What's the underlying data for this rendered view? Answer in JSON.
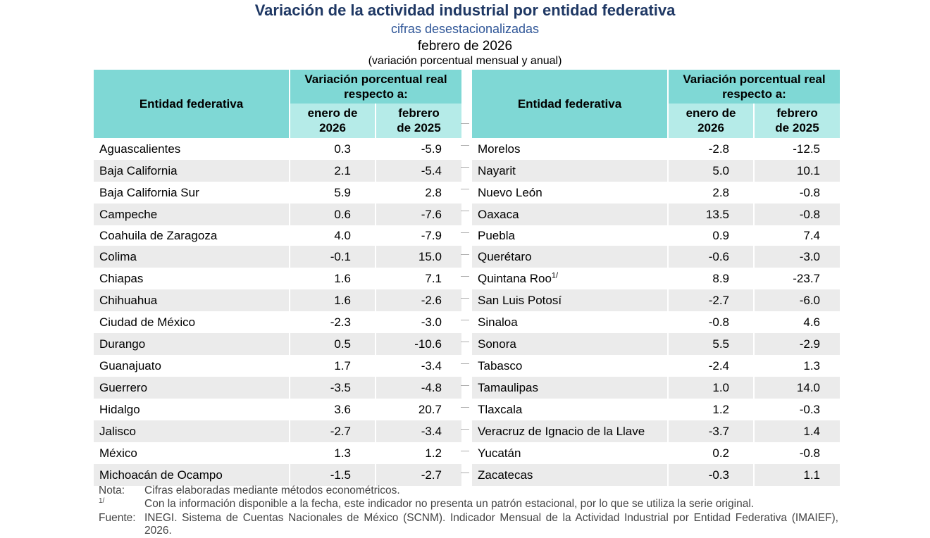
{
  "header": {
    "title": "Variación de la actividad industrial por entidad federativa",
    "subtitle": "cifras desestacionalizadas",
    "period": "febrero de 2026",
    "unit": "(variación porcentual mensual y anual)"
  },
  "columns": {
    "entity": "Entidad federativa",
    "group": "Variación porcentual real respecto a:",
    "col1": "enero de 2026",
    "col2": "febrero de 2025"
  },
  "tables": [
    {
      "rows": [
        {
          "name": "Aguascalientes",
          "v1": "0.3",
          "v2": "-5.9"
        },
        {
          "name": "Baja California",
          "v1": "2.1",
          "v2": "-5.4"
        },
        {
          "name": "Baja California Sur",
          "v1": "5.9",
          "v2": "2.8"
        },
        {
          "name": "Campeche",
          "v1": "0.6",
          "v2": "-7.6"
        },
        {
          "name": "Coahuila de Zaragoza",
          "v1": "4.0",
          "v2": "-7.9"
        },
        {
          "name": "Colima",
          "v1": "-0.1",
          "v2": "15.0"
        },
        {
          "name": "Chiapas",
          "v1": "1.6",
          "v2": "7.1"
        },
        {
          "name": "Chihuahua",
          "v1": "1.6",
          "v2": "-2.6"
        },
        {
          "name": "Ciudad de México",
          "v1": "-2.3",
          "v2": "-3.0"
        },
        {
          "name": "Durango",
          "v1": "0.5",
          "v2": "-10.6"
        },
        {
          "name": "Guanajuato",
          "v1": "1.7",
          "v2": "-3.4"
        },
        {
          "name": "Guerrero",
          "v1": "-3.5",
          "v2": "-4.8"
        },
        {
          "name": "Hidalgo",
          "v1": "3.6",
          "v2": "20.7"
        },
        {
          "name": "Jalisco",
          "v1": "-2.7",
          "v2": "-3.4"
        },
        {
          "name": "México",
          "v1": "1.3",
          "v2": "1.2"
        },
        {
          "name": "Michoacán de Ocampo",
          "v1": "-1.5",
          "v2": "-2.7"
        }
      ]
    },
    {
      "rows": [
        {
          "name": "Morelos",
          "v1": "-2.8",
          "v2": "-12.5"
        },
        {
          "name": "Nayarit",
          "v1": "5.0",
          "v2": "10.1"
        },
        {
          "name": "Nuevo León",
          "v1": "2.8",
          "v2": "-0.8"
        },
        {
          "name": "Oaxaca",
          "v1": "13.5",
          "v2": "-0.8"
        },
        {
          "name": "Puebla",
          "v1": "0.9",
          "v2": "7.4"
        },
        {
          "name": "Querétaro",
          "v1": "-0.6",
          "v2": "-3.0"
        },
        {
          "name": "Quintana Roo",
          "note": "1/",
          "v1": "8.9",
          "v2": "-23.7"
        },
        {
          "name": "San Luis Potosí",
          "v1": "-2.7",
          "v2": "-6.0"
        },
        {
          "name": "Sinaloa",
          "v1": "-0.8",
          "v2": "4.6"
        },
        {
          "name": "Sonora",
          "v1": "5.5",
          "v2": "-2.9"
        },
        {
          "name": "Tabasco",
          "v1": "-2.4",
          "v2": "1.3"
        },
        {
          "name": "Tamaulipas",
          "v1": "1.0",
          "v2": "14.0"
        },
        {
          "name": "Tlaxcala",
          "v1": "1.2",
          "v2": "-0.3"
        },
        {
          "name": "Veracruz de Ignacio de la Llave",
          "v1": "-3.7",
          "v2": "1.4"
        },
        {
          "name": "Yucatán",
          "v1": "0.2",
          "v2": "-0.8"
        },
        {
          "name": "Zacatecas",
          "v1": "-0.3",
          "v2": "1.1"
        }
      ]
    }
  ],
  "notes": [
    {
      "label": "Nota:",
      "text": "Cifras elaboradas mediante métodos econométricos."
    },
    {
      "label": "1/",
      "text": "Con la información disponible a la fecha, este indicador no presenta un patrón estacional, por lo que se utiliza la serie original."
    },
    {
      "label": "Fuente:",
      "text": "INEGI. Sistema de Cuentas Nacionales de México (SCNM). Indicador Mensual de la Actividad Industrial por Entidad Federativa (IMAIEF), 2026."
    }
  ]
}
